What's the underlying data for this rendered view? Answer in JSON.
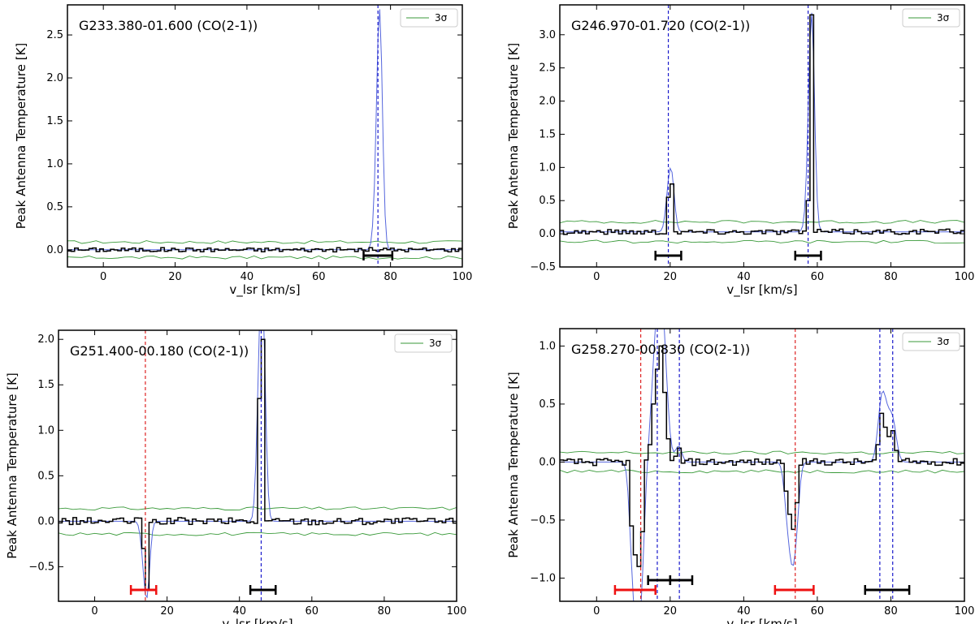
{
  "chart_data": [
    {
      "type": "line",
      "title": "G233.380-01.600 (CO(2-1))",
      "xlabel": "v_lsr [km/s]",
      "ylabel": "Peak Antenna Temperature [K]",
      "xlim": [
        -10,
        100
      ],
      "ylim": [
        -0.2,
        2.85
      ],
      "x_ticks": [
        0,
        20,
        40,
        60,
        80,
        100
      ],
      "y_ticks": [
        0.0,
        0.5,
        1.0,
        1.5,
        2.0,
        2.5
      ],
      "y_tick_labels": [
        "0.0",
        "0.5",
        "1.0",
        "1.5",
        "2.0",
        "2.5"
      ],
      "legend": {
        "label": "3σ",
        "position": "top-right"
      },
      "sigma3": 0.09,
      "baseline": 0.0,
      "noise": 0.025,
      "spikes": [
        [
          75.5,
          0.45
        ],
        [
          76.5,
          2.75
        ]
      ],
      "blue_lines": [
        76.5
      ],
      "red_lines": [],
      "ranges": [
        {
          "from": 72.5,
          "to": 80.5,
          "color": "black"
        }
      ]
    },
    {
      "type": "line",
      "title": "G246.970-01.720 (CO(2-1))",
      "xlabel": "v_lsr [km/s]",
      "ylabel": "Peak Antenna Temperature [K]",
      "xlim": [
        -10,
        100
      ],
      "ylim": [
        -0.5,
        3.45
      ],
      "x_ticks": [
        0,
        20,
        40,
        60,
        80,
        100
      ],
      "y_ticks": [
        -0.5,
        0.0,
        0.5,
        1.0,
        1.5,
        2.0,
        2.5,
        3.0
      ],
      "y_tick_labels": [
        "−0.5",
        "0.0",
        "0.5",
        "1.0",
        "1.5",
        "2.0",
        "2.5",
        "3.0"
      ],
      "legend": {
        "label": "3σ",
        "position": "top-right"
      },
      "sigma3": 0.15,
      "baseline": 0.03,
      "noise": 0.04,
      "spikes": [
        [
          19,
          0.55
        ],
        [
          20,
          0.75
        ],
        [
          57,
          0.5
        ],
        [
          58,
          3.3
        ]
      ],
      "blue_lines": [
        19.5,
        57.5
      ],
      "red_lines": [],
      "ranges": [
        {
          "from": 16,
          "to": 23,
          "color": "black"
        },
        {
          "from": 54,
          "to": 61,
          "color": "black"
        }
      ]
    },
    {
      "type": "line",
      "title": "G251.400-00.180 (CO(2-1))",
      "xlabel": "v_lsr [km/s]",
      "ylabel": "Peak Antenna Temperature [K]",
      "xlim": [
        -10,
        100
      ],
      "ylim": [
        -0.88,
        2.1
      ],
      "x_ticks": [
        0,
        20,
        40,
        60,
        80,
        100
      ],
      "y_ticks": [
        -0.5,
        0.0,
        0.5,
        1.0,
        1.5,
        2.0
      ],
      "y_tick_labels": [
        "−0.5",
        "0.0",
        "0.5",
        "1.0",
        "1.5",
        "2.0"
      ],
      "legend": {
        "label": "3σ",
        "position": "top-right"
      },
      "sigma3": 0.14,
      "baseline": 0.0,
      "noise": 0.04,
      "spikes": [
        [
          13,
          -0.3
        ],
        [
          14,
          -0.75
        ],
        [
          45,
          1.35
        ],
        [
          46,
          2.0
        ]
      ],
      "blue_lines": [
        46
      ],
      "red_lines": [
        14
      ],
      "ranges": [
        {
          "from": 10,
          "to": 17,
          "color": "red"
        },
        {
          "from": 43,
          "to": 50,
          "color": "black"
        }
      ]
    },
    {
      "type": "line",
      "title": "G258.270-00.830 (CO(2-1))",
      "xlabel": "v_lsr [km/s]",
      "ylabel": "Peak Antenna Temperature [K]",
      "xlim": [
        -10,
        100
      ],
      "ylim": [
        -1.2,
        1.15
      ],
      "x_ticks": [
        0,
        20,
        40,
        60,
        80,
        100
      ],
      "y_ticks": [
        -1.0,
        -0.5,
        0.0,
        0.5,
        1.0
      ],
      "y_tick_labels": [
        "−1.0",
        "−0.5",
        "0.0",
        "0.5",
        "1.0"
      ],
      "legend": {
        "label": "3σ",
        "position": "top-right"
      },
      "sigma3": 0.08,
      "baseline": 0.0,
      "noise": 0.03,
      "spikes": [
        [
          9,
          -0.55
        ],
        [
          10,
          -0.8
        ],
        [
          11,
          -0.9
        ],
        [
          12,
          -0.6
        ],
        [
          14,
          0.15
        ],
        [
          15,
          0.5
        ],
        [
          16,
          0.8
        ],
        [
          17,
          1.0
        ],
        [
          18,
          0.6
        ],
        [
          19,
          0.2
        ],
        [
          21,
          0.05
        ],
        [
          22,
          0.12
        ],
        [
          51,
          -0.25
        ],
        [
          52,
          -0.45
        ],
        [
          53,
          -0.58
        ],
        [
          54,
          -0.35
        ],
        [
          76,
          0.15
        ],
        [
          77,
          0.42
        ],
        [
          78,
          0.3
        ],
        [
          79,
          0.22
        ],
        [
          80,
          0.27
        ],
        [
          81,
          0.1
        ]
      ],
      "blue_lines": [
        16.5,
        22.5,
        77,
        80.5
      ],
      "red_lines": [
        12,
        54
      ],
      "ranges": [
        {
          "from": 5,
          "to": 16,
          "color": "red"
        },
        {
          "from": 14,
          "to": 20,
          "color": "black"
        },
        {
          "from": 20,
          "to": 26,
          "color": "black"
        },
        {
          "from": 48.5,
          "to": 59,
          "color": "red"
        },
        {
          "from": 73,
          "to": 85,
          "color": "black"
        }
      ]
    }
  ]
}
